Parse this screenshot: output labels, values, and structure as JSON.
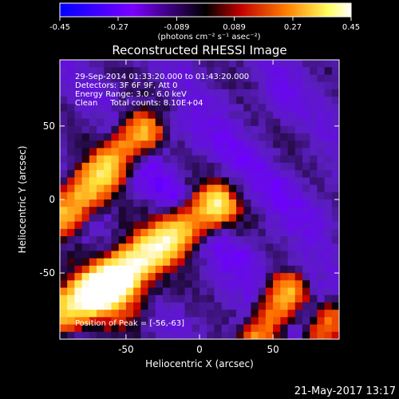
{
  "chart_data": {
    "type": "heatmap",
    "title": "Reconstructed RHESSI Image",
    "colorbar": {
      "ticks": [
        "-0.45",
        "-0.27",
        "-0.089",
        "0.089",
        "0.27",
        "0.45"
      ],
      "range": [
        -0.45,
        0.45
      ],
      "unit_label": "(photons cm⁻² s⁻¹ asec⁻²)",
      "colors": [
        "#0000ff",
        "#7a00ff",
        "#000000",
        "#c00000",
        "#ff8000",
        "#ffff60",
        "#ffffff"
      ]
    },
    "xlabel": "Heliocentric X (arcsec)",
    "ylabel": "Heliocentric Y (arcsec)",
    "xlim": [
      -95,
      95
    ],
    "ylim": [
      -95,
      95
    ],
    "xticks": [
      "-50",
      "0",
      "50"
    ],
    "yticks": [
      "50",
      "0",
      "-50"
    ],
    "annotations": [
      "29-Sep-2014 01:33:20.000 to 01:43:20.000",
      "Detectors: 3F 6F 9F, Att 0",
      "Energy Range: 3.0 - 6.0 keV",
      "Clean     Total counts: 8.10E+04"
    ],
    "peak_label": "Position of Peak = [-56,-63]",
    "peak": [
      -56,
      -63
    ],
    "grid": false
  },
  "footer": {
    "timestamp": "21-May-2017 13:17"
  }
}
